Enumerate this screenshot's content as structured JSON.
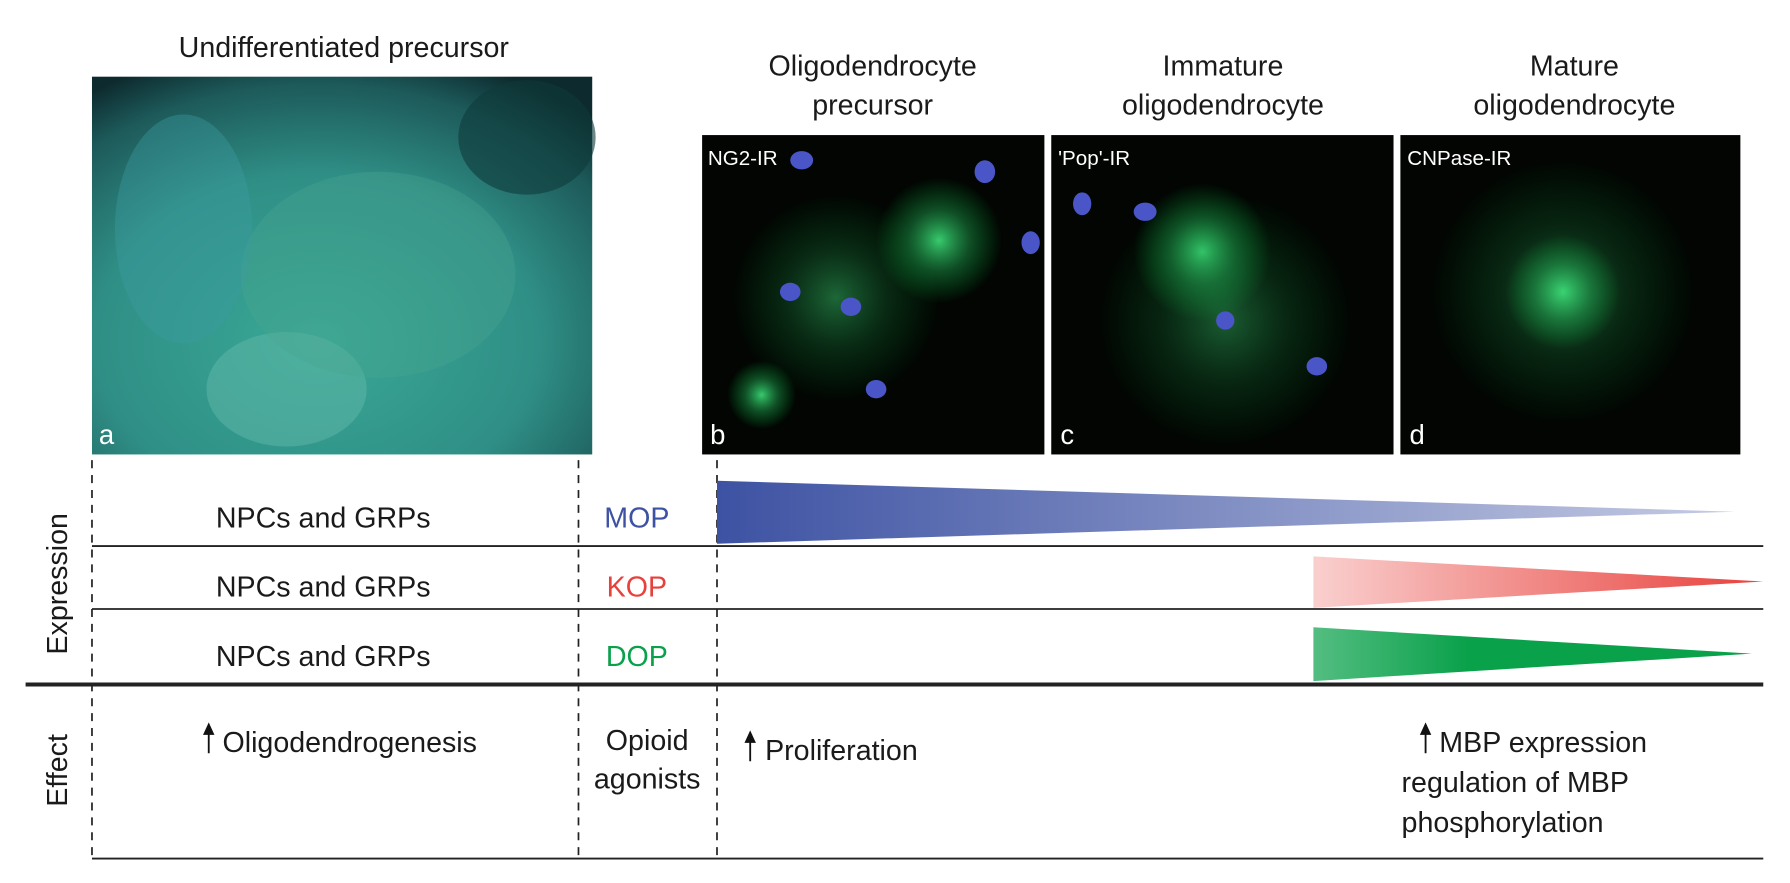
{
  "stages": [
    {
      "title_lines": [
        "Undifferentiated precursor"
      ],
      "panel_label": "a"
    },
    {
      "title_lines": [
        "Oligodendrocyte",
        "precursor"
      ],
      "stain": "NG2-IR",
      "panel_label": "b"
    },
    {
      "title_lines": [
        "Immature",
        "oligodendrocyte"
      ],
      "stain": "'Pop'-IR",
      "panel_label": "c"
    },
    {
      "title_lines": [
        "Mature",
        "oligodendrocyte"
      ],
      "stain": "CNPase-IR",
      "panel_label": "d"
    }
  ],
  "axis_labels": {
    "expression": "Expression",
    "effect": "Effect"
  },
  "expression_rows": [
    {
      "cells": "NPCs and GRPs",
      "receptor": "MOP",
      "color": "#3d52a3"
    },
    {
      "cells": "NPCs and GRPs",
      "receptor": "KOP",
      "color": "#e8413c"
    },
    {
      "cells": "NPCs and GRPs",
      "receptor": "DOP",
      "color": "#0aa14b"
    }
  ],
  "effects": {
    "precursor": [
      "Oligodendrogenesis"
    ],
    "treatment": [
      "Opioid",
      "agonists"
    ],
    "early": [
      "Proliferation"
    ],
    "late": [
      "MBP expression",
      "regulation of MBP",
      "phosphorylation"
    ]
  }
}
